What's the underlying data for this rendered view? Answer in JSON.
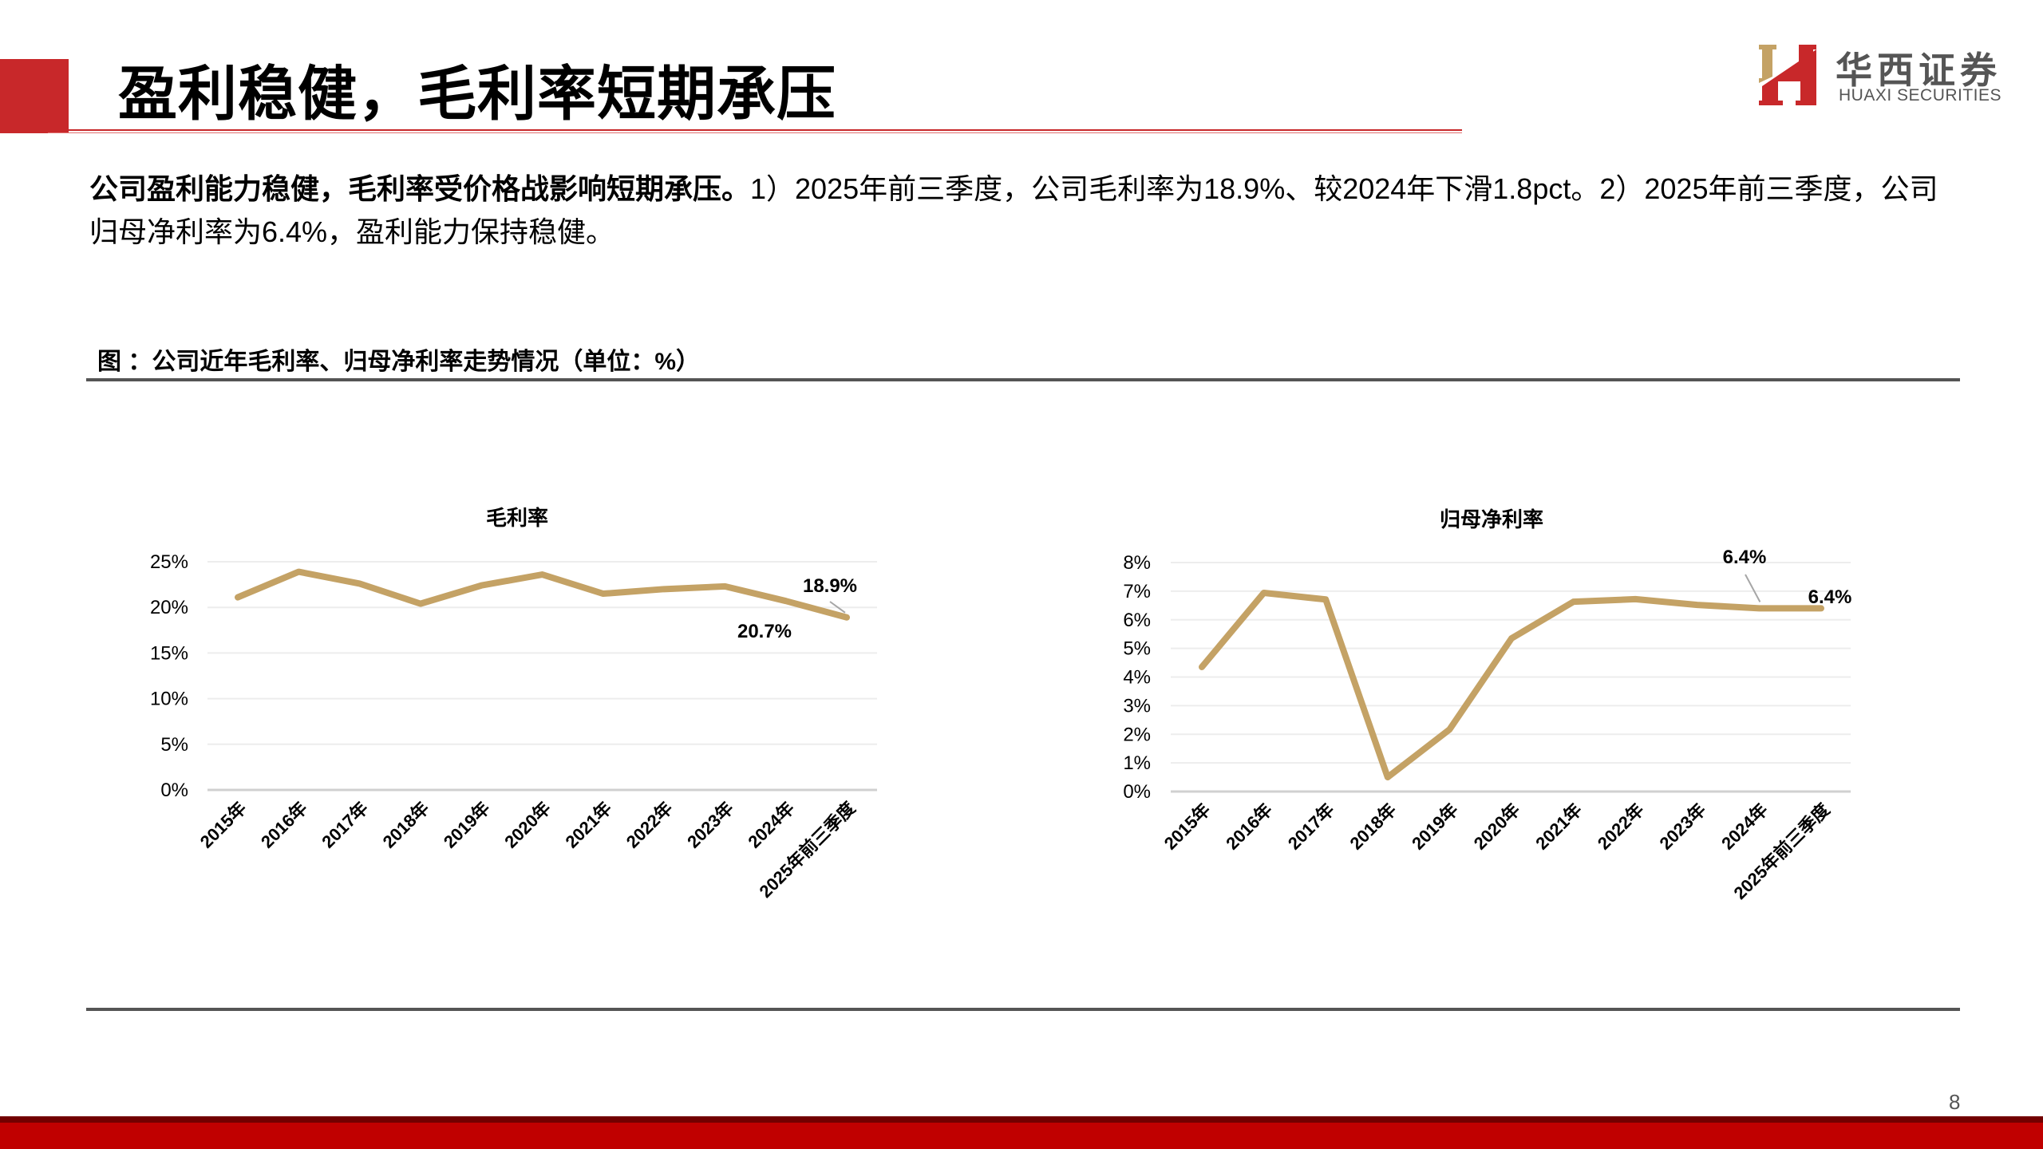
{
  "header": {
    "title": "盈利稳健，毛利率短期承压",
    "logo": {
      "cn": "华西证券",
      "en": "HUAXI SECURITIES",
      "icon": "huaxi-h-logo-icon"
    }
  },
  "body": {
    "bold_lead": "公司盈利能力稳健，毛利率受价格战影响短期承压。",
    "text_1": "1）2025年前三季度，公司毛利率为18.9%、较2024年下滑1.8pct。2）2025年前三季度，公司归母净利率为6.4%，盈利能力保持稳健。"
  },
  "figure": {
    "caption": "图 ：公司近年毛利率、归母净利率走势情况（单位：%）"
  },
  "page_number": "8",
  "colors": {
    "brand_red": "#C8282A",
    "footer_red": "#C00000",
    "footer_dark": "#720000",
    "line": "#C4A265",
    "divider": "#555555"
  },
  "chart_data": [
    {
      "type": "line",
      "title": "毛利率",
      "categories": [
        "2015年",
        "2016年",
        "2017年",
        "2018年",
        "2019年",
        "2020年",
        "2021年",
        "2022年",
        "2023年",
        "2024年",
        "2025年前三季度"
      ],
      "values": [
        21.1,
        23.9,
        22.6,
        20.4,
        22.4,
        23.6,
        21.5,
        22.0,
        22.3,
        20.7,
        18.9
      ],
      "data_labels": [
        {
          "index": 9,
          "text": "20.7%"
        },
        {
          "index": 10,
          "text": "18.9%"
        }
      ],
      "yticks": [
        "0%",
        "5%",
        "10%",
        "15%",
        "20%",
        "25%"
      ],
      "ylim": [
        0,
        25
      ],
      "xlabel": "",
      "ylabel": "",
      "grid": true,
      "legend": "none"
    },
    {
      "type": "line",
      "title": "归母净利率",
      "categories": [
        "2015年",
        "2016年",
        "2017年",
        "2018年",
        "2019年",
        "2020年",
        "2021年",
        "2022年",
        "2023年",
        "2024年",
        "2025年前三季度"
      ],
      "values": [
        4.35,
        6.94,
        6.71,
        0.5,
        2.17,
        5.35,
        6.63,
        6.72,
        6.52,
        6.4,
        6.4
      ],
      "data_labels": [
        {
          "index": 9,
          "text": "6.4%"
        },
        {
          "index": 10,
          "text": "6.4%"
        }
      ],
      "yticks": [
        "0%",
        "1%",
        "2%",
        "3%",
        "4%",
        "5%",
        "6%",
        "7%",
        "8%"
      ],
      "ylim": [
        0,
        8
      ],
      "xlabel": "",
      "ylabel": "",
      "grid": true,
      "legend": "none"
    }
  ]
}
